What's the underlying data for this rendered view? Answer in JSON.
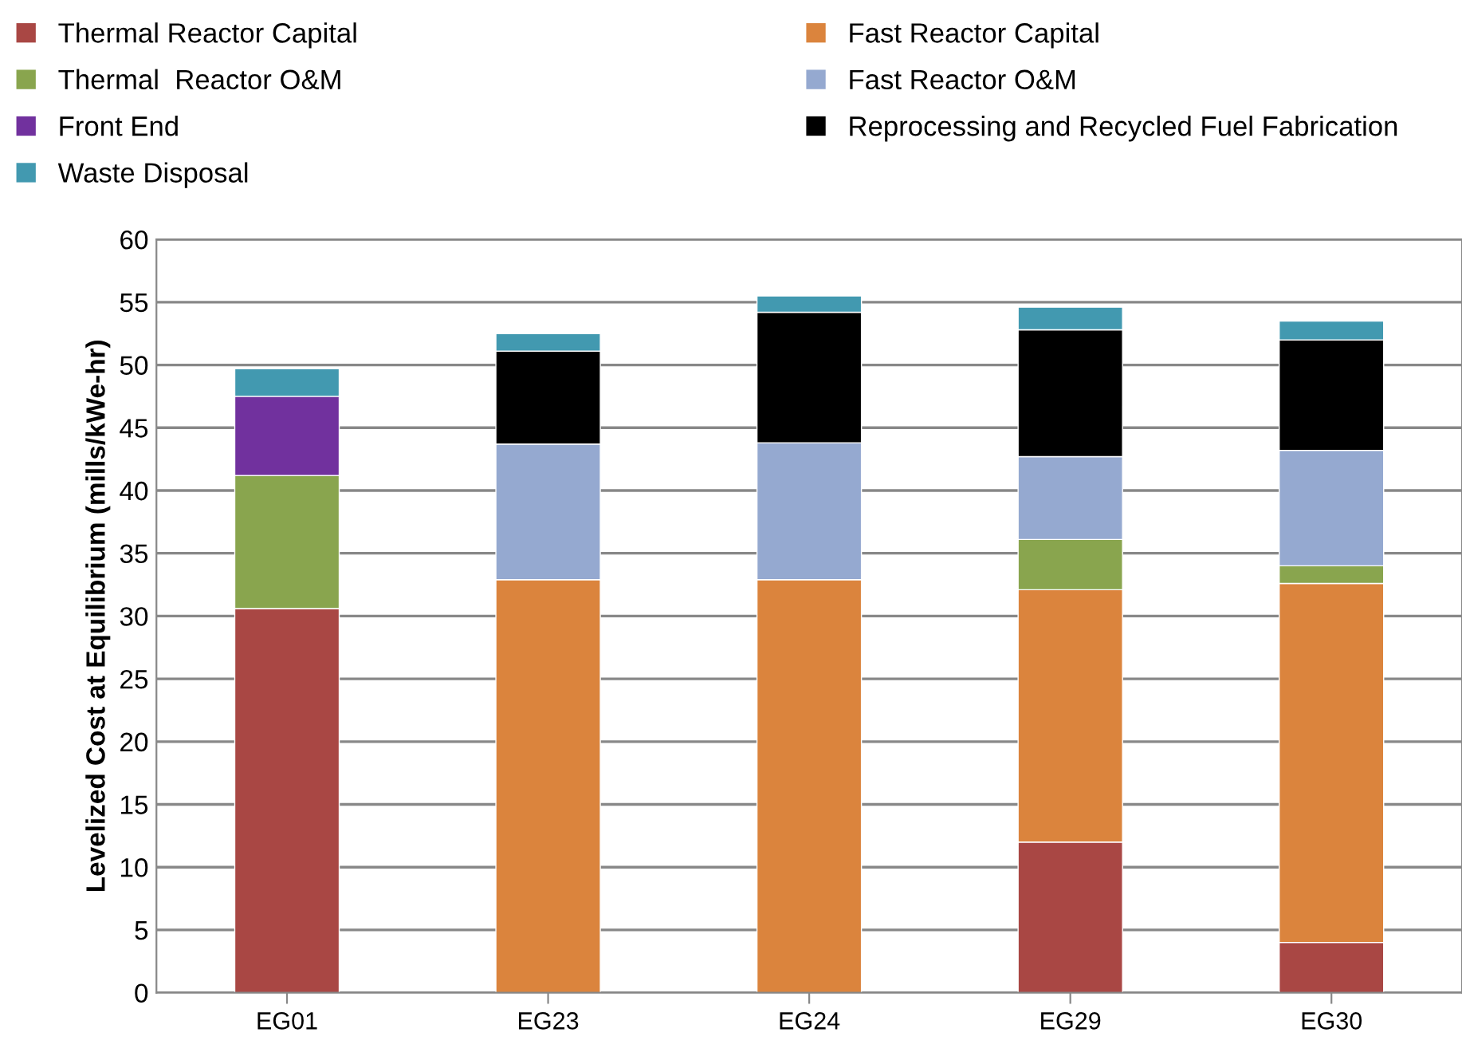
{
  "chart_data": {
    "type": "bar",
    "stacked": true,
    "ylabel": "Levelized Cost at Equilibrium (mills/kWe-hr)",
    "categories": [
      "EG01",
      "EG23",
      "EG24",
      "EG29",
      "EG30"
    ],
    "series": [
      {
        "name": "Thermal Reactor Capital",
        "color": "#a94744",
        "values": [
          30.6,
          null,
          null,
          12.0,
          4.0
        ]
      },
      {
        "name": "Fast Reactor Capital",
        "color": "#db843d",
        "values": [
          null,
          32.9,
          32.9,
          20.1,
          28.6
        ]
      },
      {
        "name": "Thermal  Reactor O&M",
        "color": "#89a54e",
        "values": [
          10.6,
          null,
          null,
          4.0,
          1.4
        ]
      },
      {
        "name": "Fast Reactor O&M",
        "color": "#95a9d0",
        "values": [
          null,
          10.8,
          10.9,
          6.6,
          9.2
        ]
      },
      {
        "name": "Front End",
        "color": "#71319e",
        "values": [
          6.3,
          null,
          null,
          null,
          null
        ]
      },
      {
        "name": "Reprocessing and Recycled Fuel Fabrication",
        "color": "#000000",
        "values": [
          null,
          7.4,
          10.4,
          10.1,
          8.8
        ]
      },
      {
        "name": "Waste Disposal",
        "color": "#4299b0",
        "values": [
          2.2,
          1.4,
          1.3,
          1.8,
          1.5
        ]
      }
    ],
    "ylim": [
      0,
      60
    ],
    "yticks": [
      0,
      5,
      10,
      15,
      20,
      25,
      30,
      35,
      40,
      45,
      50,
      55,
      60
    ],
    "grid": "y",
    "legend": "top"
  }
}
